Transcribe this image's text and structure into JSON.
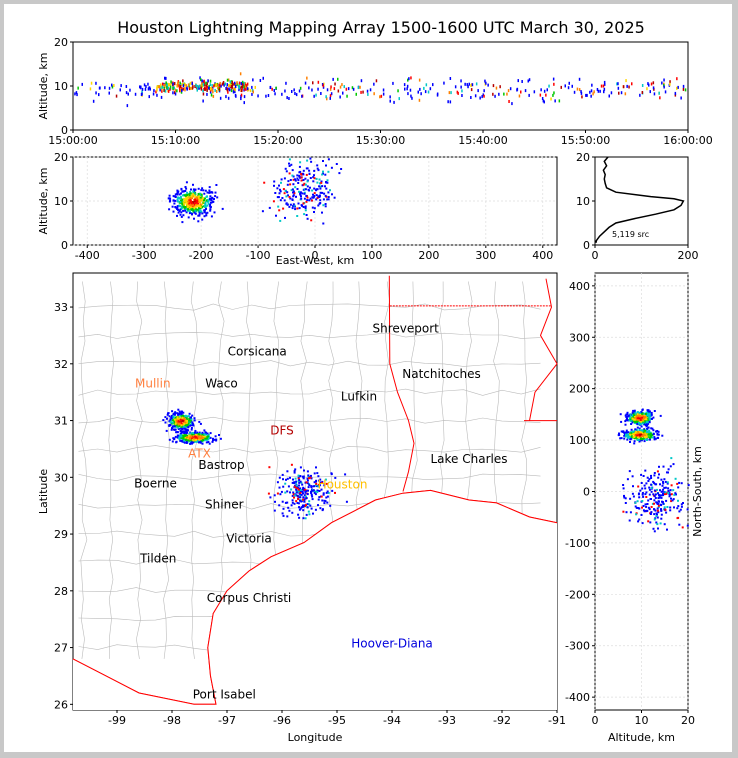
{
  "figure_title": "Houston Lightning Mapping Array 1500-1600 UTC March 30, 2025",
  "colors": {
    "density": [
      "#0000ff",
      "#00c8c8",
      "#00c800",
      "#ffd700",
      "#ff8000",
      "#ff0000",
      "#b40000"
    ],
    "boundary": "#ff0000",
    "county": "#bbbbbb",
    "profile_line": "#000000"
  },
  "chart_data": [
    {
      "type": "scatter",
      "name": "time-altitude",
      "title": "",
      "xlabel": "",
      "ylabel": "Altitude, km",
      "xticks": [
        "15:00:00",
        "15:10:00",
        "15:20:00",
        "15:30:00",
        "15:40:00",
        "15:50:00",
        "16:00:00"
      ],
      "xlim_minutes": [
        0,
        60
      ],
      "ylim": [
        0,
        20
      ],
      "yticks": [
        0,
        10,
        20
      ],
      "clusters": [
        {
          "x_minutes": [
            0,
            60
          ],
          "altitude_km": [
            7,
            12
          ],
          "density": "moderate"
        },
        {
          "x_minutes": [
            8,
            17
          ],
          "altitude_km": [
            9,
            11.5
          ],
          "density": "high"
        }
      ]
    },
    {
      "type": "scatter",
      "name": "east-west-altitude",
      "xlabel": "East-West, km",
      "ylabel": "Altitude, km",
      "xlim": [
        -425,
        425
      ],
      "ylim": [
        0,
        20
      ],
      "xticks": [
        -400,
        -300,
        -200,
        -100,
        0,
        100,
        200,
        300,
        400
      ],
      "yticks": [
        0,
        10,
        20
      ],
      "clusters": [
        {
          "x_km": -215,
          "altitude_km": 10,
          "spread_x": 28,
          "spread_alt": 2.5,
          "density": "high"
        },
        {
          "x_km": -20,
          "altitude_km": 13,
          "spread_x": 45,
          "spread_alt": 5,
          "density": "low"
        }
      ]
    },
    {
      "type": "line",
      "name": "altitude-histogram",
      "annotation": "5,119 src",
      "xlim": [
        0,
        200
      ],
      "ylim": [
        0,
        20
      ],
      "xticks": [
        0,
        200
      ],
      "yticks": [
        0,
        10,
        20
      ],
      "altitude_km": [
        0.5,
        1,
        2,
        3,
        4,
        5,
        6,
        7,
        8,
        9,
        10,
        10.5,
        11,
        12,
        13,
        14,
        15,
        16,
        17,
        18,
        19,
        20
      ],
      "count": [
        2,
        3,
        10,
        20,
        30,
        45,
        85,
        130,
        170,
        185,
        190,
        170,
        120,
        45,
        25,
        22,
        20,
        22,
        18,
        25,
        20,
        28
      ]
    },
    {
      "type": "scatter",
      "name": "plan-view-map",
      "xlabel": "Longitude",
      "ylabel": "Latitude",
      "xlim": [
        -99.8,
        -91
      ],
      "ylim": [
        25.9,
        33.6
      ],
      "xticks": [
        -99,
        -98,
        -97,
        -96,
        -95,
        -94,
        -93,
        -92,
        -91
      ],
      "yticks": [
        26,
        27,
        28,
        29,
        30,
        31,
        32,
        33
      ],
      "clusters": [
        {
          "lon": -97.85,
          "lat": 31.0,
          "spread_lon": 0.2,
          "spread_lat": 0.12,
          "density": "high"
        },
        {
          "lon": -97.6,
          "lat": 30.72,
          "spread_lon": 0.3,
          "spread_lat": 0.08,
          "density": "high"
        },
        {
          "lon": -95.6,
          "lat": 29.75,
          "spread_lon": 0.4,
          "spread_lat": 0.3,
          "density": "low"
        }
      ],
      "places": [
        {
          "name": "Shreveport",
          "lon": -93.75,
          "lat": 32.55,
          "color": "#000000"
        },
        {
          "name": "Corsicana",
          "lon": -96.45,
          "lat": 32.15,
          "color": "#000000"
        },
        {
          "name": "Natchitoches",
          "lon": -93.1,
          "lat": 31.75,
          "color": "#000000"
        },
        {
          "name": "Mullin",
          "lon": -98.35,
          "lat": 31.58,
          "color": "#ff8040"
        },
        {
          "name": "Waco",
          "lon": -97.1,
          "lat": 31.58,
          "color": "#000000"
        },
        {
          "name": "Lufkin",
          "lon": -94.6,
          "lat": 31.35,
          "color": "#000000"
        },
        {
          "name": "DFS",
          "lon": -96.0,
          "lat": 30.75,
          "color": "#b40000"
        },
        {
          "name": "ATX",
          "lon": -97.5,
          "lat": 30.35,
          "color": "#ff8040"
        },
        {
          "name": "Bastrop",
          "lon": -97.1,
          "lat": 30.15,
          "color": "#000000"
        },
        {
          "name": "Lake Charles",
          "lon": -92.6,
          "lat": 30.25,
          "color": "#000000"
        },
        {
          "name": "Boerne",
          "lon": -98.3,
          "lat": 29.82,
          "color": "#000000"
        },
        {
          "name": "Houston",
          "lon": -94.9,
          "lat": 29.8,
          "color": "#ffc000"
        },
        {
          "name": "Shiner",
          "lon": -97.05,
          "lat": 29.45,
          "color": "#000000"
        },
        {
          "name": "Victoria",
          "lon": -96.6,
          "lat": 28.85,
          "color": "#000000"
        },
        {
          "name": "Tilden",
          "lon": -98.25,
          "lat": 28.5,
          "color": "#000000"
        },
        {
          "name": "Corpus Christi",
          "lon": -96.6,
          "lat": 27.8,
          "color": "#000000"
        },
        {
          "name": "Hoover-Diana",
          "lon": -94.0,
          "lat": 27.0,
          "color": "#0000dd"
        },
        {
          "name": "Port Isabel",
          "lon": -97.05,
          "lat": 26.1,
          "color": "#000000"
        }
      ]
    },
    {
      "type": "scatter",
      "name": "altitude-north-south",
      "xlabel": "Altitude, km",
      "ylabel": "North-South, km",
      "xlim": [
        0,
        20
      ],
      "ylim": [
        -425,
        425
      ],
      "xticks": [
        0,
        10,
        20
      ],
      "yticks": [
        -400,
        -300,
        -200,
        -100,
        0,
        100,
        200,
        300,
        400
      ],
      "clusters": [
        {
          "altitude_km": 9.5,
          "y_km": 145,
          "spread_alt": 2.5,
          "spread_y": 12,
          "density": "high"
        },
        {
          "altitude_km": 9.5,
          "y_km": 112,
          "spread_alt": 3,
          "spread_y": 10,
          "density": "high"
        },
        {
          "altitude_km": 13,
          "y_km": -10,
          "spread_alt": 5,
          "spread_y": 45,
          "density": "low"
        }
      ]
    }
  ]
}
